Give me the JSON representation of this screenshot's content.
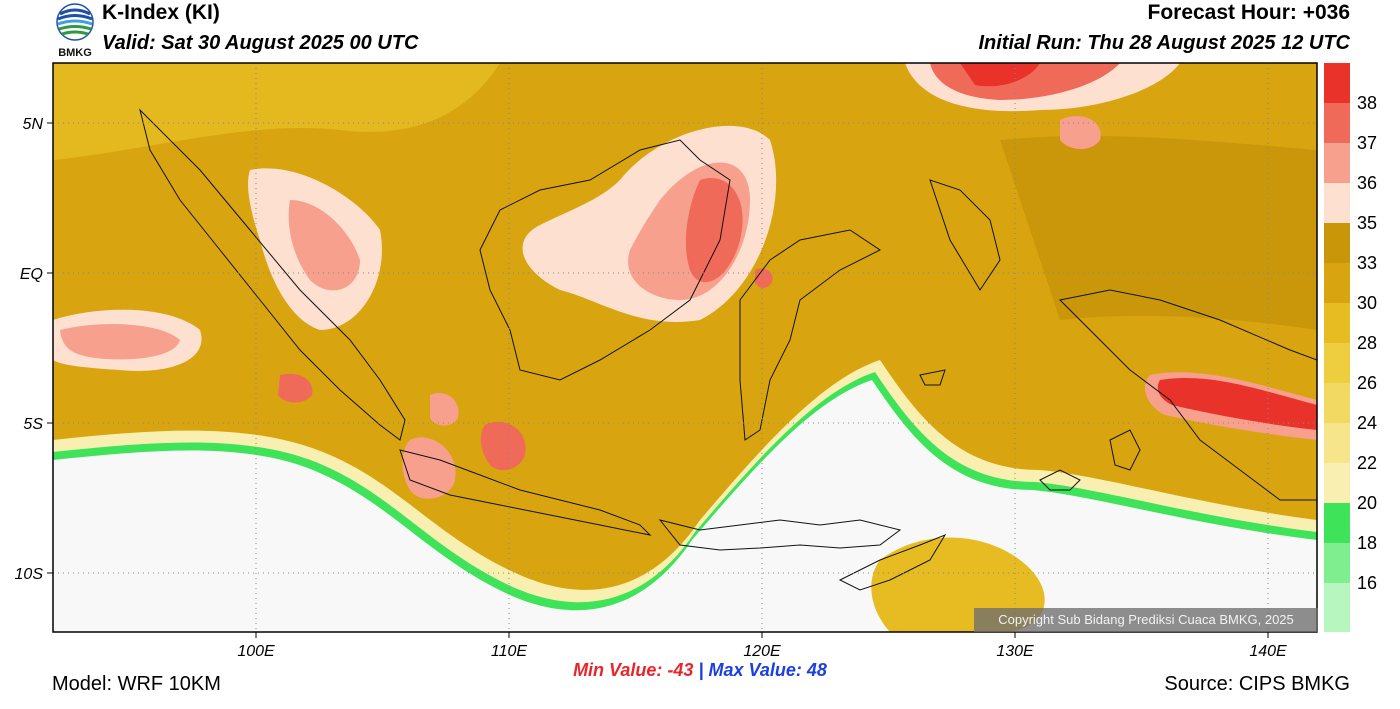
{
  "header": {
    "title": "K-Index (KI)",
    "valid": "Valid: Sat 30 August 2025 00 UTC",
    "forecast_hour": "Forecast Hour: +036",
    "initial_run": "Initial Run: Thu 28 August 2025 12 UTC",
    "logo_text": "BMKG"
  },
  "map": {
    "lat_labels": [
      "5N",
      "EQ",
      "5S",
      "10S"
    ],
    "lon_labels": [
      "100E",
      "110E",
      "120E",
      "130E",
      "140E"
    ]
  },
  "colorbar": {
    "levels": [
      "38",
      "37",
      "36",
      "35",
      "33",
      "30",
      "28",
      "26",
      "24",
      "22",
      "20",
      "18",
      "16"
    ],
    "colors": [
      "#e8322a",
      "#f06a5a",
      "#f8a08e",
      "#fde0d0",
      "#c9960a",
      "#d8a510",
      "#e6bc22",
      "#eecd3e",
      "#f2d961",
      "#f6e58a",
      "#f9efb0",
      "#3fe35a",
      "#7fee8e",
      "#b8f6c0"
    ]
  },
  "stats": {
    "min_label": "Min Value:",
    "min_value": "-43",
    "separator": "|",
    "max_label": "Max Value:",
    "max_value": "48"
  },
  "footer": {
    "model": "Model: WRF 10KM",
    "source": "Source: CIPS BMKG",
    "copyright": "Copyright Sub Bidang Prediksi Cuaca BMKG, 2025"
  }
}
